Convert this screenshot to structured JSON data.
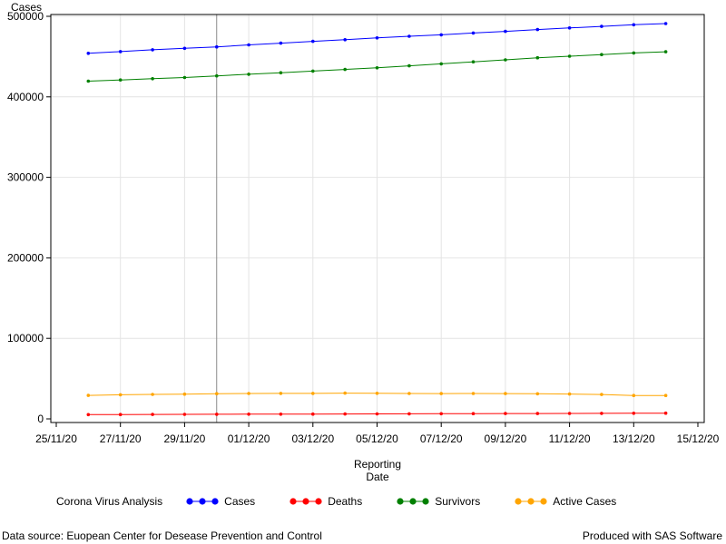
{
  "chart_data": {
    "type": "line",
    "ylabel": "Cases",
    "xlabel_lines": [
      "Reporting",
      "Date"
    ],
    "x_ticks": [
      "25/11/20",
      "27/11/20",
      "29/11/20",
      "01/12/20",
      "03/12/20",
      "05/12/20",
      "07/12/20",
      "09/12/20",
      "11/12/20",
      "13/12/20",
      "15/12/20"
    ],
    "y_ticks": [
      "0",
      "100000",
      "200000",
      "300000",
      "400000",
      "500000"
    ],
    "ylim": [
      0,
      505000
    ],
    "xlim": [
      "2020-11-25",
      "2020-12-15"
    ],
    "reference_line_x": "2020-11-30",
    "grid": true,
    "x": [
      "2020-11-26",
      "2020-11-27",
      "2020-11-28",
      "2020-11-29",
      "2020-11-30",
      "2020-12-01",
      "2020-12-02",
      "2020-12-03",
      "2020-12-04",
      "2020-12-05",
      "2020-12-06",
      "2020-12-07",
      "2020-12-08",
      "2020-12-09",
      "2020-12-10",
      "2020-12-11",
      "2020-12-12",
      "2020-12-13",
      "2020-12-14"
    ],
    "series": [
      {
        "name": "Cases",
        "color": "#0000ff",
        "values": [
          454000,
          456200,
          458400,
          460200,
          462100,
          464500,
          466700,
          468900,
          471000,
          473200,
          475200,
          477000,
          479300,
          481300,
          483600,
          485600,
          487500,
          489500,
          491000
        ]
      },
      {
        "name": "Deaths",
        "color": "#ff0000",
        "values": [
          5300,
          5400,
          5500,
          5600,
          5700,
          5800,
          5900,
          6000,
          6100,
          6200,
          6300,
          6400,
          6500,
          6600,
          6700,
          6800,
          6900,
          7000,
          7100
        ]
      },
      {
        "name": "Survivors",
        "color": "#008000",
        "values": [
          419500,
          421000,
          422500,
          424000,
          426000,
          428000,
          430000,
          432000,
          434000,
          436000,
          438500,
          441000,
          443500,
          446000,
          448500,
          450500,
          452500,
          454500,
          456000
        ]
      },
      {
        "name": "Active Cases",
        "color": "#ffa500",
        "values": [
          29200,
          29900,
          30400,
          30700,
          31300,
          31500,
          31600,
          31700,
          32000,
          31800,
          31500,
          31400,
          31500,
          31400,
          31200,
          30800,
          30300,
          29000,
          29000
        ]
      }
    ]
  },
  "legend": {
    "title": "Corona Virus Analysis"
  },
  "footnotes": {
    "left": "Data source: Euopean Center for Desease Prevention and Control",
    "right": "Produced with SAS Software"
  }
}
